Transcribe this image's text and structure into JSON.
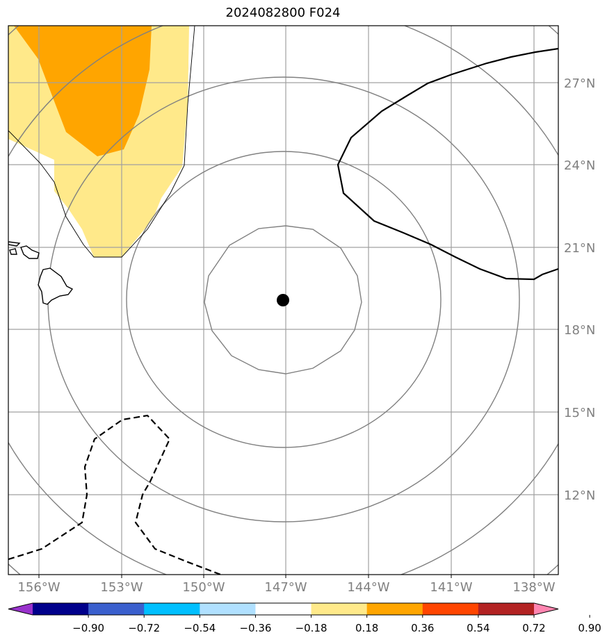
{
  "title": "2024082800 F024",
  "map": {
    "lon_labels": [
      "156°W",
      "153°W",
      "150°W",
      "147°W",
      "144°W",
      "141°W",
      "138°W"
    ],
    "lat_labels": [
      "27°N",
      "24°N",
      "21°N",
      "18°N",
      "15°N",
      "12°N"
    ],
    "center_marker": {
      "lon": -147.0,
      "lat": 19.1
    },
    "range_rings": 5,
    "colors": {
      "yellow": "#ffe98a",
      "orange": "#ffa500",
      "ring": "#808080",
      "grid": "#a0a0a0"
    }
  },
  "colorbar": {
    "ticks": [
      "−0.90",
      "−0.72",
      "−0.54",
      "−0.36",
      "−0.18",
      "0.18",
      "0.36",
      "0.54",
      "0.72",
      "0.90"
    ],
    "colors": [
      "#9932cc",
      "#00008b",
      "#3a5fcd",
      "#00bfff",
      "#b0e0ff",
      "#ffffff",
      "#ffe98a",
      "#ffa500",
      "#ff4500",
      "#b22222",
      "#ff85b0"
    ]
  }
}
